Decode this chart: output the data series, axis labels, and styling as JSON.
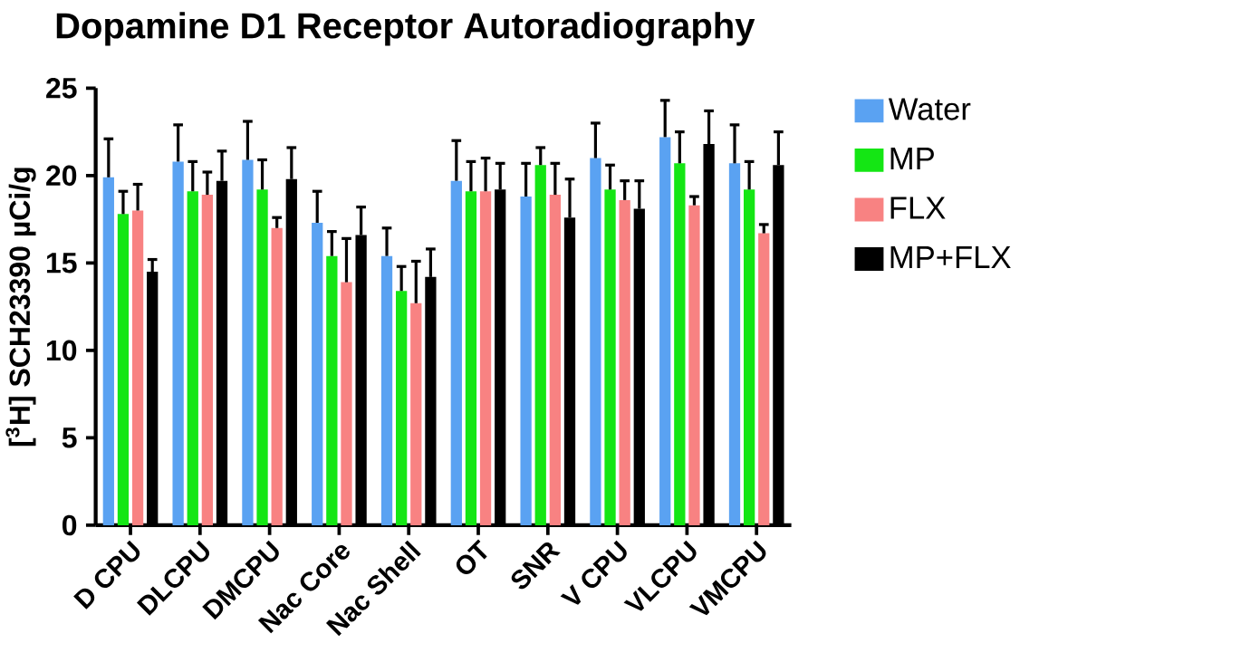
{
  "chart_data": {
    "type": "bar",
    "title": "Dopamine D1 Receptor Autoradiography",
    "ylabel": "[$^{3}$H] SCH23390 µCi/g",
    "categories": [
      "D CPU",
      "DLCPU",
      "DMCPU",
      "Nac Core",
      "Nac Shell",
      "OT",
      "SNR",
      "V CPU",
      "VLCPU",
      "VMCPU"
    ],
    "series": [
      {
        "name": "Water",
        "color": "#5aa2f2",
        "values": [
          19.9,
          20.8,
          20.9,
          17.3,
          15.4,
          19.7,
          18.8,
          21.0,
          22.2,
          20.7
        ],
        "errors": [
          2.2,
          2.1,
          2.2,
          1.8,
          1.6,
          2.3,
          1.9,
          2.0,
          2.1,
          2.2
        ]
      },
      {
        "name": "MP",
        "color": "#14e614",
        "values": [
          17.8,
          19.1,
          19.2,
          15.4,
          13.4,
          19.1,
          20.6,
          19.2,
          20.7,
          19.2
        ],
        "errors": [
          1.3,
          1.7,
          1.7,
          1.4,
          1.4,
          1.7,
          1.0,
          1.4,
          1.8,
          1.6
        ]
      },
      {
        "name": "FLX",
        "color": "#f88282",
        "values": [
          18.0,
          18.9,
          17.0,
          13.9,
          12.7,
          19.1,
          18.9,
          18.6,
          18.3,
          16.7
        ],
        "errors": [
          1.5,
          1.3,
          0.6,
          2.5,
          2.4,
          1.9,
          1.8,
          1.1,
          0.5,
          0.5
        ]
      },
      {
        "name": "MP+FLX",
        "color": "#000000",
        "values": [
          14.5,
          19.7,
          19.8,
          16.6,
          14.2,
          19.2,
          17.6,
          18.1,
          21.8,
          20.6
        ],
        "errors": [
          0.7,
          1.7,
          1.8,
          1.6,
          1.6,
          1.5,
          2.2,
          1.6,
          1.9,
          1.9
        ]
      }
    ],
    "ylim": [
      0,
      25
    ],
    "yticks": [
      0,
      5,
      10,
      15,
      20,
      25
    ],
    "grid": false,
    "legend": "top right"
  }
}
